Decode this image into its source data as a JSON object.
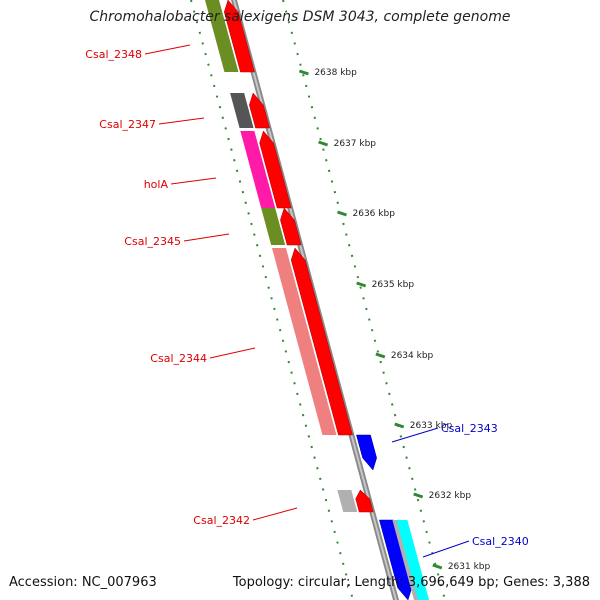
{
  "map": {
    "title": "Chromohalobacter salexigens DSM 3043, complete genome",
    "colors": {
      "backbone": "#8a8a8a",
      "tick": "#2f8a2f",
      "plus_gene": "#ff0000",
      "label_red": "#dd0000",
      "label_blue": "#0000cc"
    },
    "ruler": [
      "2631 kbp",
      "2632 kbp",
      "2633 kbp",
      "2634 kbp",
      "2635 kbp",
      "2636 kbp",
      "2637 kbp",
      "2638 kbp"
    ],
    "genes": [
      {
        "name": "Csal_2348",
        "label_color": "red",
        "strand": "+",
        "cog_color": "#6b8e23",
        "fill": "#ff0000"
      },
      {
        "name": "Csal_2347",
        "label_color": "red",
        "strand": "+",
        "cog_color": "#555555",
        "fill": "#ff0000"
      },
      {
        "name": "holA",
        "label_color": "red",
        "strand": "+",
        "cog_color": "#ff1aa8",
        "fill": "#ff0000"
      },
      {
        "name": "Csal_2345",
        "label_color": "red",
        "strand": "+",
        "cog_color": "#6b8e23",
        "fill": "#ff0000"
      },
      {
        "name": "Csal_2344",
        "label_color": "red",
        "strand": "+",
        "cog_color": "#f08080",
        "fill": "#ff0000"
      },
      {
        "name": "Csal_2343",
        "label_color": "blue",
        "strand": "-",
        "cog_color": "",
        "fill": "#0000ff"
      },
      {
        "name": "Csal_2342",
        "label_color": "red",
        "strand": "+",
        "cog_color": "#b0b0b0",
        "fill": "#ff0000"
      },
      {
        "name": "Csal_2340",
        "label_color": "blue",
        "strand": "-",
        "cog_color": "#00ffff",
        "fill": "#0000ff"
      }
    ]
  },
  "footer": {
    "accession": "Accession: NC_007963",
    "topology": "Topology: circular; Length: 3,696,649 bp; Genes: 3,388"
  }
}
